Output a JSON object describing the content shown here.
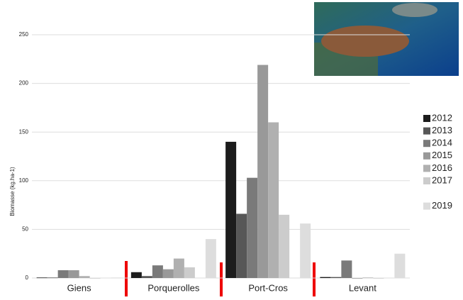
{
  "chart_data": {
    "type": "bar",
    "y_label": "Biomasse (kg.ha-1)",
    "categories": [
      "Giens",
      "Porquerolles",
      "Port-Cros",
      "Levant"
    ],
    "series": [
      {
        "name": "2012",
        "color": "#1c1c1c",
        "values": [
          0.5,
          6,
          140,
          1
        ]
      },
      {
        "name": "2013",
        "color": "#575757",
        "values": [
          0.5,
          2,
          66,
          1
        ]
      },
      {
        "name": "2014",
        "color": "#7a7a7a",
        "values": [
          8,
          13,
          103,
          18
        ]
      },
      {
        "name": "2015",
        "color": "#999999",
        "values": [
          8,
          9,
          219,
          0
        ]
      },
      {
        "name": "2016",
        "color": "#b0b0b0",
        "values": [
          2,
          20,
          160,
          0.5
        ]
      },
      {
        "name": "2017",
        "color": "#cccccc",
        "values": [
          0,
          11,
          65,
          0
        ]
      },
      {
        "name": "2019",
        "color": "#dddddd",
        "values": [
          0.5,
          40,
          56,
          25
        ]
      }
    ],
    "ylim": [
      0,
      250
    ],
    "yticks": [
      0,
      50,
      100,
      150,
      200,
      250
    ],
    "grid": true,
    "legend": "right"
  }
}
